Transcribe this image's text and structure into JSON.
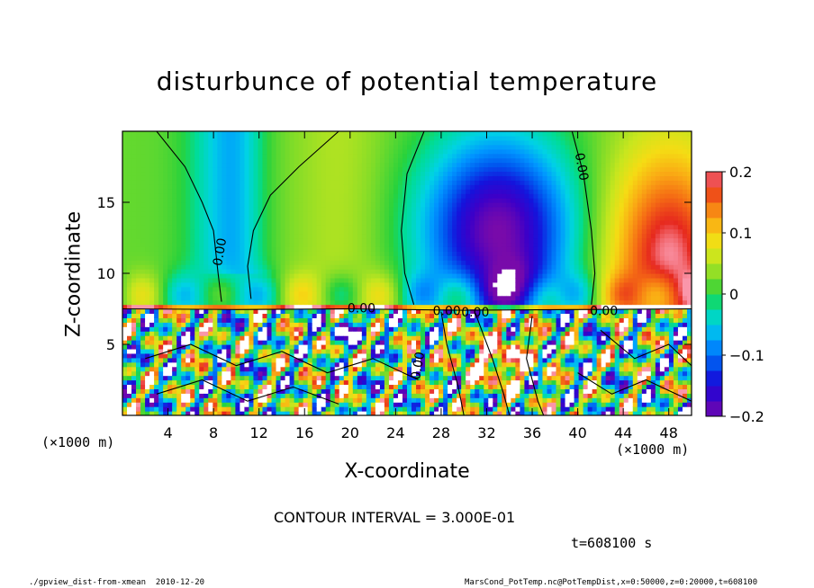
{
  "chart_data": {
    "type": "heatmap",
    "title": "disturbunce of potential temperature",
    "xlabel": "X-coordinate",
    "ylabel": "Z-coordinate",
    "x_unit": "(×1000 m)",
    "x_ticks": [
      4,
      8,
      12,
      16,
      20,
      24,
      28,
      32,
      36,
      40,
      44,
      48
    ],
    "y_ticks": [
      5,
      10,
      15
    ],
    "xlim": [
      0,
      50
    ],
    "ylim": [
      0,
      20
    ],
    "colorbar": {
      "range": [
        -0.2,
        0.2
      ],
      "tick_labels": [
        "0.2",
        "0.1",
        "0",
        "−0.1",
        "−0.2"
      ],
      "tick_values": [
        0.2,
        0.1,
        0,
        -0.1,
        -0.2
      ]
    },
    "contour_labels": [
      "0.00",
      "0.00",
      "0.00",
      "0.00",
      "0.00",
      "0.00",
      "0.00"
    ],
    "contour_interval": "CONTOUR INTERVAL = 3.000E-01",
    "time": "t=608100 s",
    "footer_left": "./gpview_dist-from-xmean  2010-12-20",
    "footer_right": "MarsCond_PotTemp.nc@PotTempDist,x=0:50000,z=0:20000,t=608100",
    "colors": {
      "strong_negative": "#7a10b0",
      "negative": "#1020e0",
      "mid_negative": "#00c8f0",
      "zero": "#30d040",
      "positive": "#f0e020",
      "strong_positive": "#f03020"
    }
  }
}
